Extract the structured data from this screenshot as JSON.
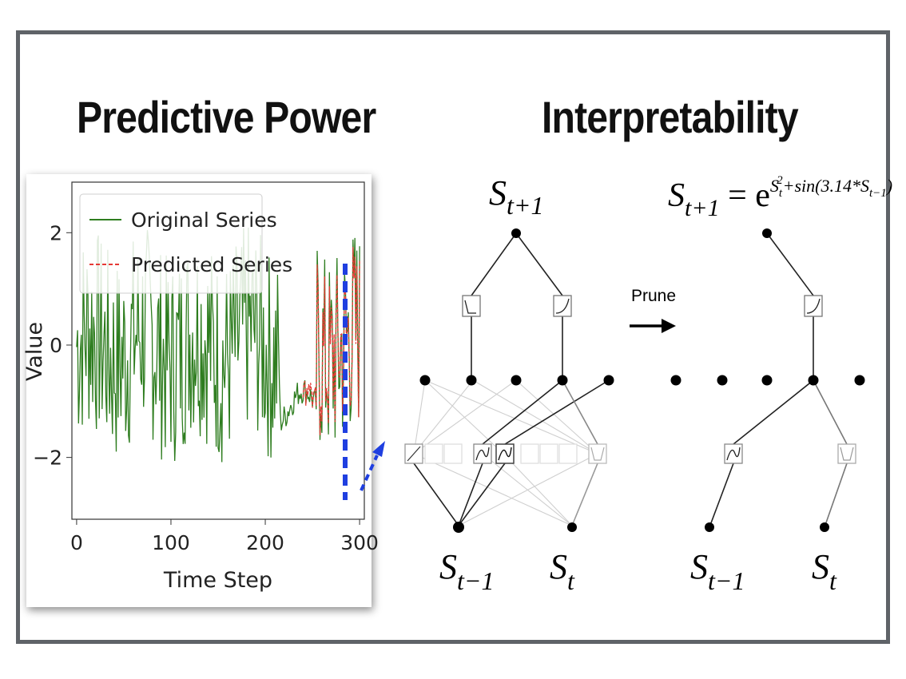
{
  "titles": {
    "left": "Predictive Power",
    "right": "Interpretability"
  },
  "chart_data": {
    "type": "line",
    "xlabel": "Time Step",
    "ylabel": "Value",
    "xlim": [
      -5,
      305
    ],
    "ylim": [
      -3.1,
      2.9
    ],
    "xticks": [
      "0",
      "100",
      "200",
      "300"
    ],
    "yticks": [
      "−2",
      "0",
      "2"
    ],
    "legend_position": "top-left",
    "series": [
      {
        "name": "Original Series",
        "color": "#2e7d1f",
        "style": "solid",
        "x_start": 0,
        "x_end": 300
      },
      {
        "name": "Predicted Series",
        "color": "#e53935",
        "style": "dashed",
        "x_start": 240,
        "x_end": 300
      }
    ]
  },
  "diagram": {
    "prune_label": "Prune",
    "nodes": {
      "output": "S",
      "output_sub": "t+1",
      "input_prev": "S",
      "input_prev_sub": "t−1",
      "input_cur": "S",
      "input_cur_sub": "t"
    },
    "formula": {
      "lhs": "S",
      "lhs_sub": "t+1",
      "eq": " = e",
      "exp_s": "S",
      "exp_sub": "t",
      "exp_sup": "2",
      "exp_rest": "+sin(3.14*S",
      "exp_rest_sub": "t−1",
      "exp_close": ")"
    }
  },
  "colors": {
    "original": "#2e7d1f",
    "predicted": "#e53935",
    "highlight": "#1f3fe0",
    "frame": "#5f6368"
  }
}
